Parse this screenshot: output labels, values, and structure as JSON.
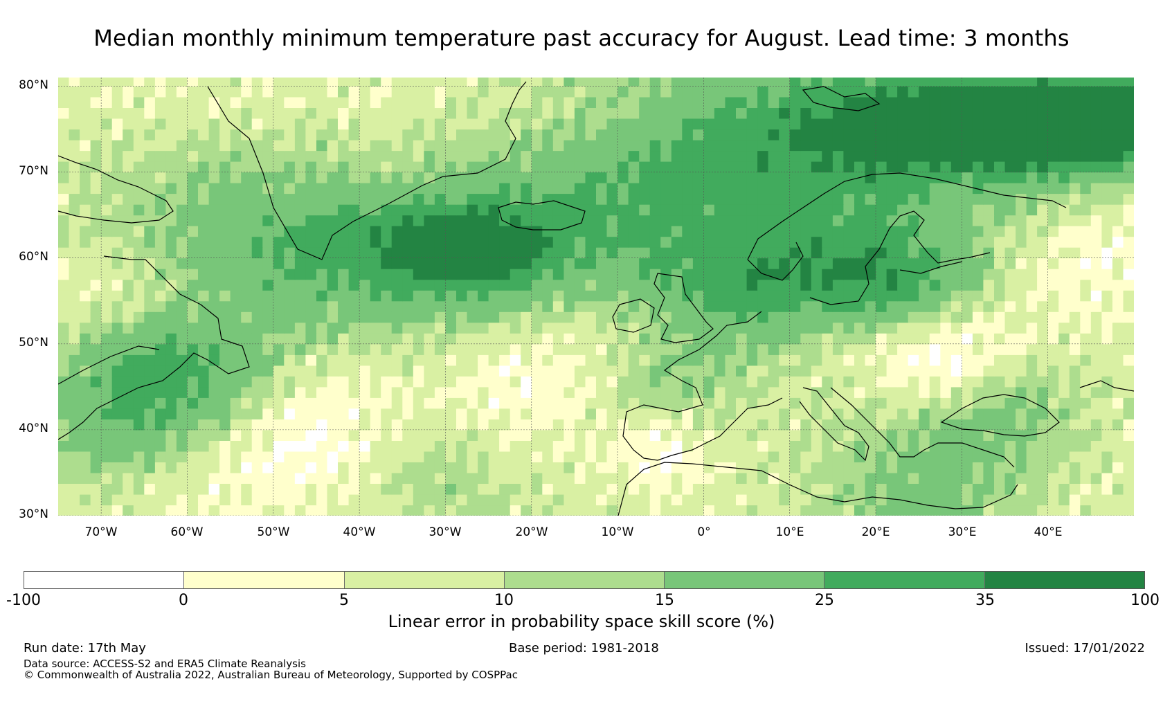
{
  "title": "Median monthly minimum temperature past accuracy for August. Lead time: 3 months",
  "map": {
    "lat_range": [
      30,
      81
    ],
    "lon_range": [
      -75,
      50
    ],
    "lat_ticks": [
      "80°N",
      "70°N",
      "60°N",
      "50°N",
      "40°N",
      "30°N"
    ],
    "lon_ticks": [
      "70°W",
      "60°W",
      "50°W",
      "40°W",
      "30°W",
      "20°W",
      "10°W",
      "0°",
      "10°E",
      "20°E",
      "30°E",
      "40°E"
    ]
  },
  "colorbar": {
    "label": "Linear error in probability space skill score (%)",
    "ticks": [
      "-100",
      "0",
      "5",
      "10",
      "15",
      "25",
      "35",
      "100"
    ],
    "colors": [
      "#ffffff",
      "#ffffcc",
      "#d9f0a3",
      "#addd8e",
      "#78c679",
      "#41ab5d",
      "#238443"
    ]
  },
  "footer": {
    "run_date": "Run date: 17th May",
    "base_period": "Base period: 1981-2018",
    "issued": "Issued: 17/01/2022",
    "data_source": "Data source: ACCESS-S2 and ERA5 Climate Reanalysis",
    "copyright": "© Commonwealth of Australia 2022, Australian Bureau of Meteorology, Supported by COSPPac"
  }
}
